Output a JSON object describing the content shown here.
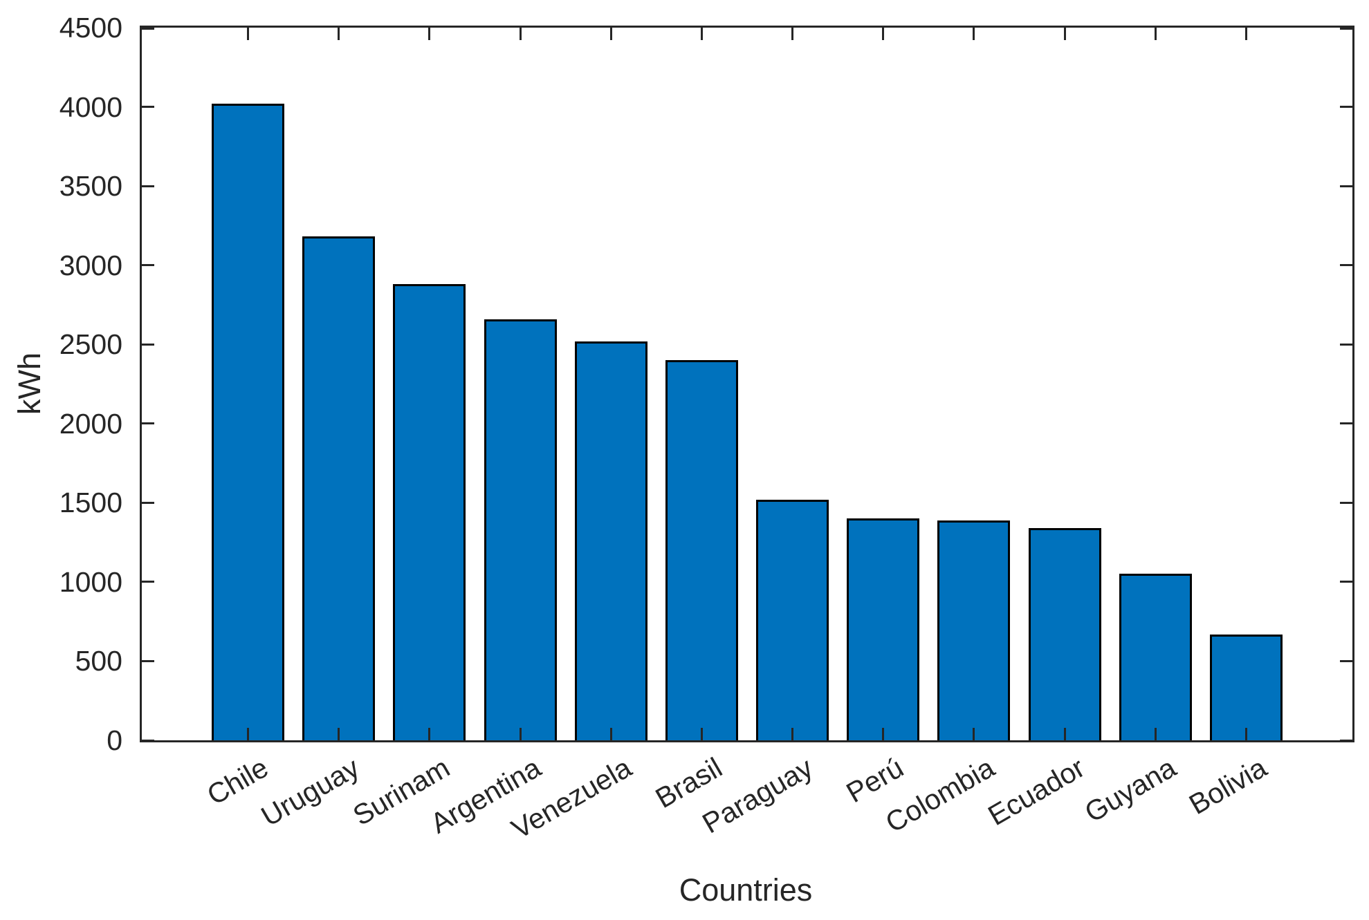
{
  "chart_data": {
    "type": "bar",
    "title": "",
    "categories": [
      "Chile",
      "Uruguay",
      "Surinam",
      "Argentina",
      "Venezuela",
      "Brasil",
      "Paraguay",
      "Perú",
      "Colombia",
      "Ecuador",
      "Guyana",
      "Bolivia"
    ],
    "values": [
      4020,
      3180,
      2880,
      2660,
      2520,
      2400,
      1520,
      1400,
      1390,
      1340,
      1050,
      670
    ],
    "xlabel": "Countries",
    "ylabel": "kWh",
    "ylim": [
      0,
      4500
    ],
    "yticks": [
      0,
      500,
      1000,
      1500,
      2000,
      2500,
      3000,
      3500,
      4000,
      4500
    ],
    "grid": false,
    "legend": "none",
    "x_tick_label_rotation_deg": 30,
    "colors": {
      "bar_fill": "#0072BD",
      "bar_edge": "#000000",
      "axis": "#262626",
      "text": "#262626",
      "background": "#ffffff"
    }
  }
}
